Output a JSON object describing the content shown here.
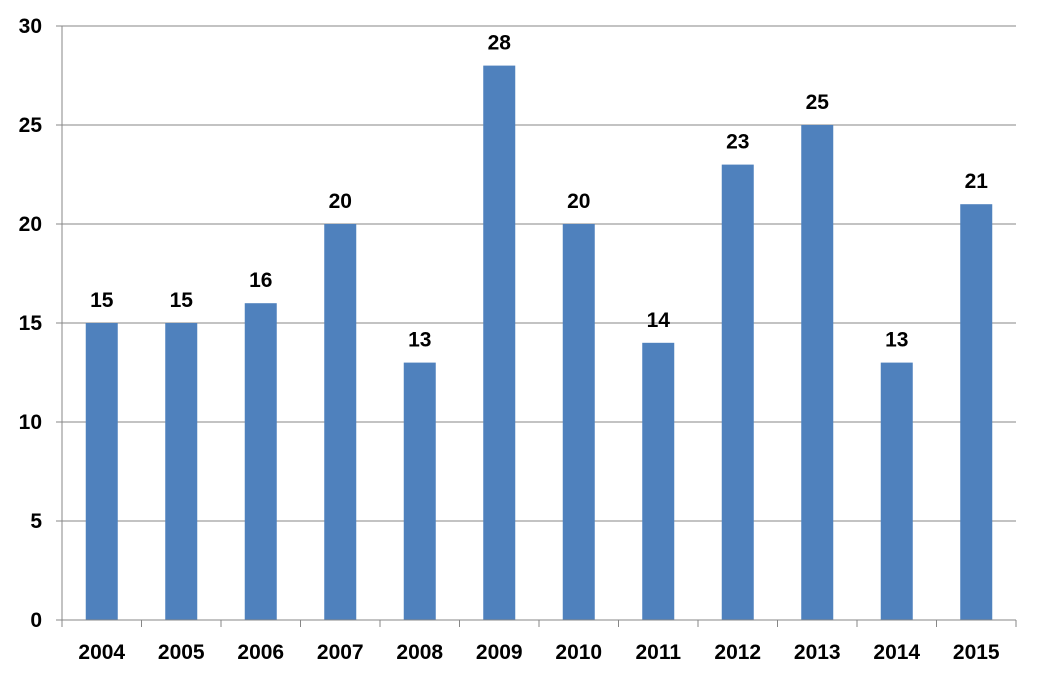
{
  "chart_data": {
    "type": "bar",
    "categories": [
      "2004",
      "2005",
      "2006",
      "2007",
      "2008",
      "2009",
      "2010",
      "2011",
      "2012",
      "2013",
      "2014",
      "2015"
    ],
    "values": [
      15,
      15,
      16,
      20,
      13,
      28,
      20,
      14,
      23,
      25,
      13,
      21
    ],
    "ylim": [
      0,
      30
    ],
    "yticks": [
      0,
      5,
      10,
      15,
      20,
      25,
      30
    ],
    "grid": true,
    "legend": "none",
    "data_labels": true,
    "bar_color": "#4f81bd"
  }
}
